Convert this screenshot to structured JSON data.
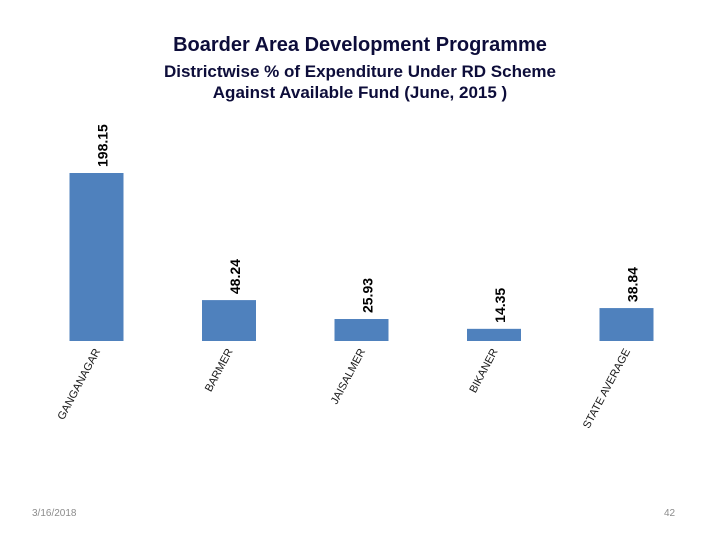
{
  "slide": {
    "title": "Boarder Area Development Programme",
    "subtitle_line1": "Districtwise % of Expenditure Under RD Scheme",
    "subtitle_line2": "Against  Available Fund (June, 2015 )",
    "footer_date": "3/16/2018",
    "page_number": "42"
  },
  "chart_data": {
    "type": "bar",
    "title": "Districtwise % of Expenditure Under RD Scheme Against Available Fund (June, 2015 )",
    "categories": [
      "GANGANAGAR",
      "BARMER",
      "JAISALMER",
      "BIKANER",
      "STATE AVERAGE"
    ],
    "values": [
      198.15,
      48.24,
      25.93,
      14.35,
      38.84
    ],
    "value_labels": [
      "198.15",
      "48.24",
      "25.93",
      "14.35",
      "38.84"
    ],
    "xlabel": "",
    "ylabel": "",
    "ylim": [
      0,
      198.15
    ],
    "grid": false,
    "legend": "none",
    "bar_color": "#4f81bd",
    "label_color": "#000000"
  }
}
